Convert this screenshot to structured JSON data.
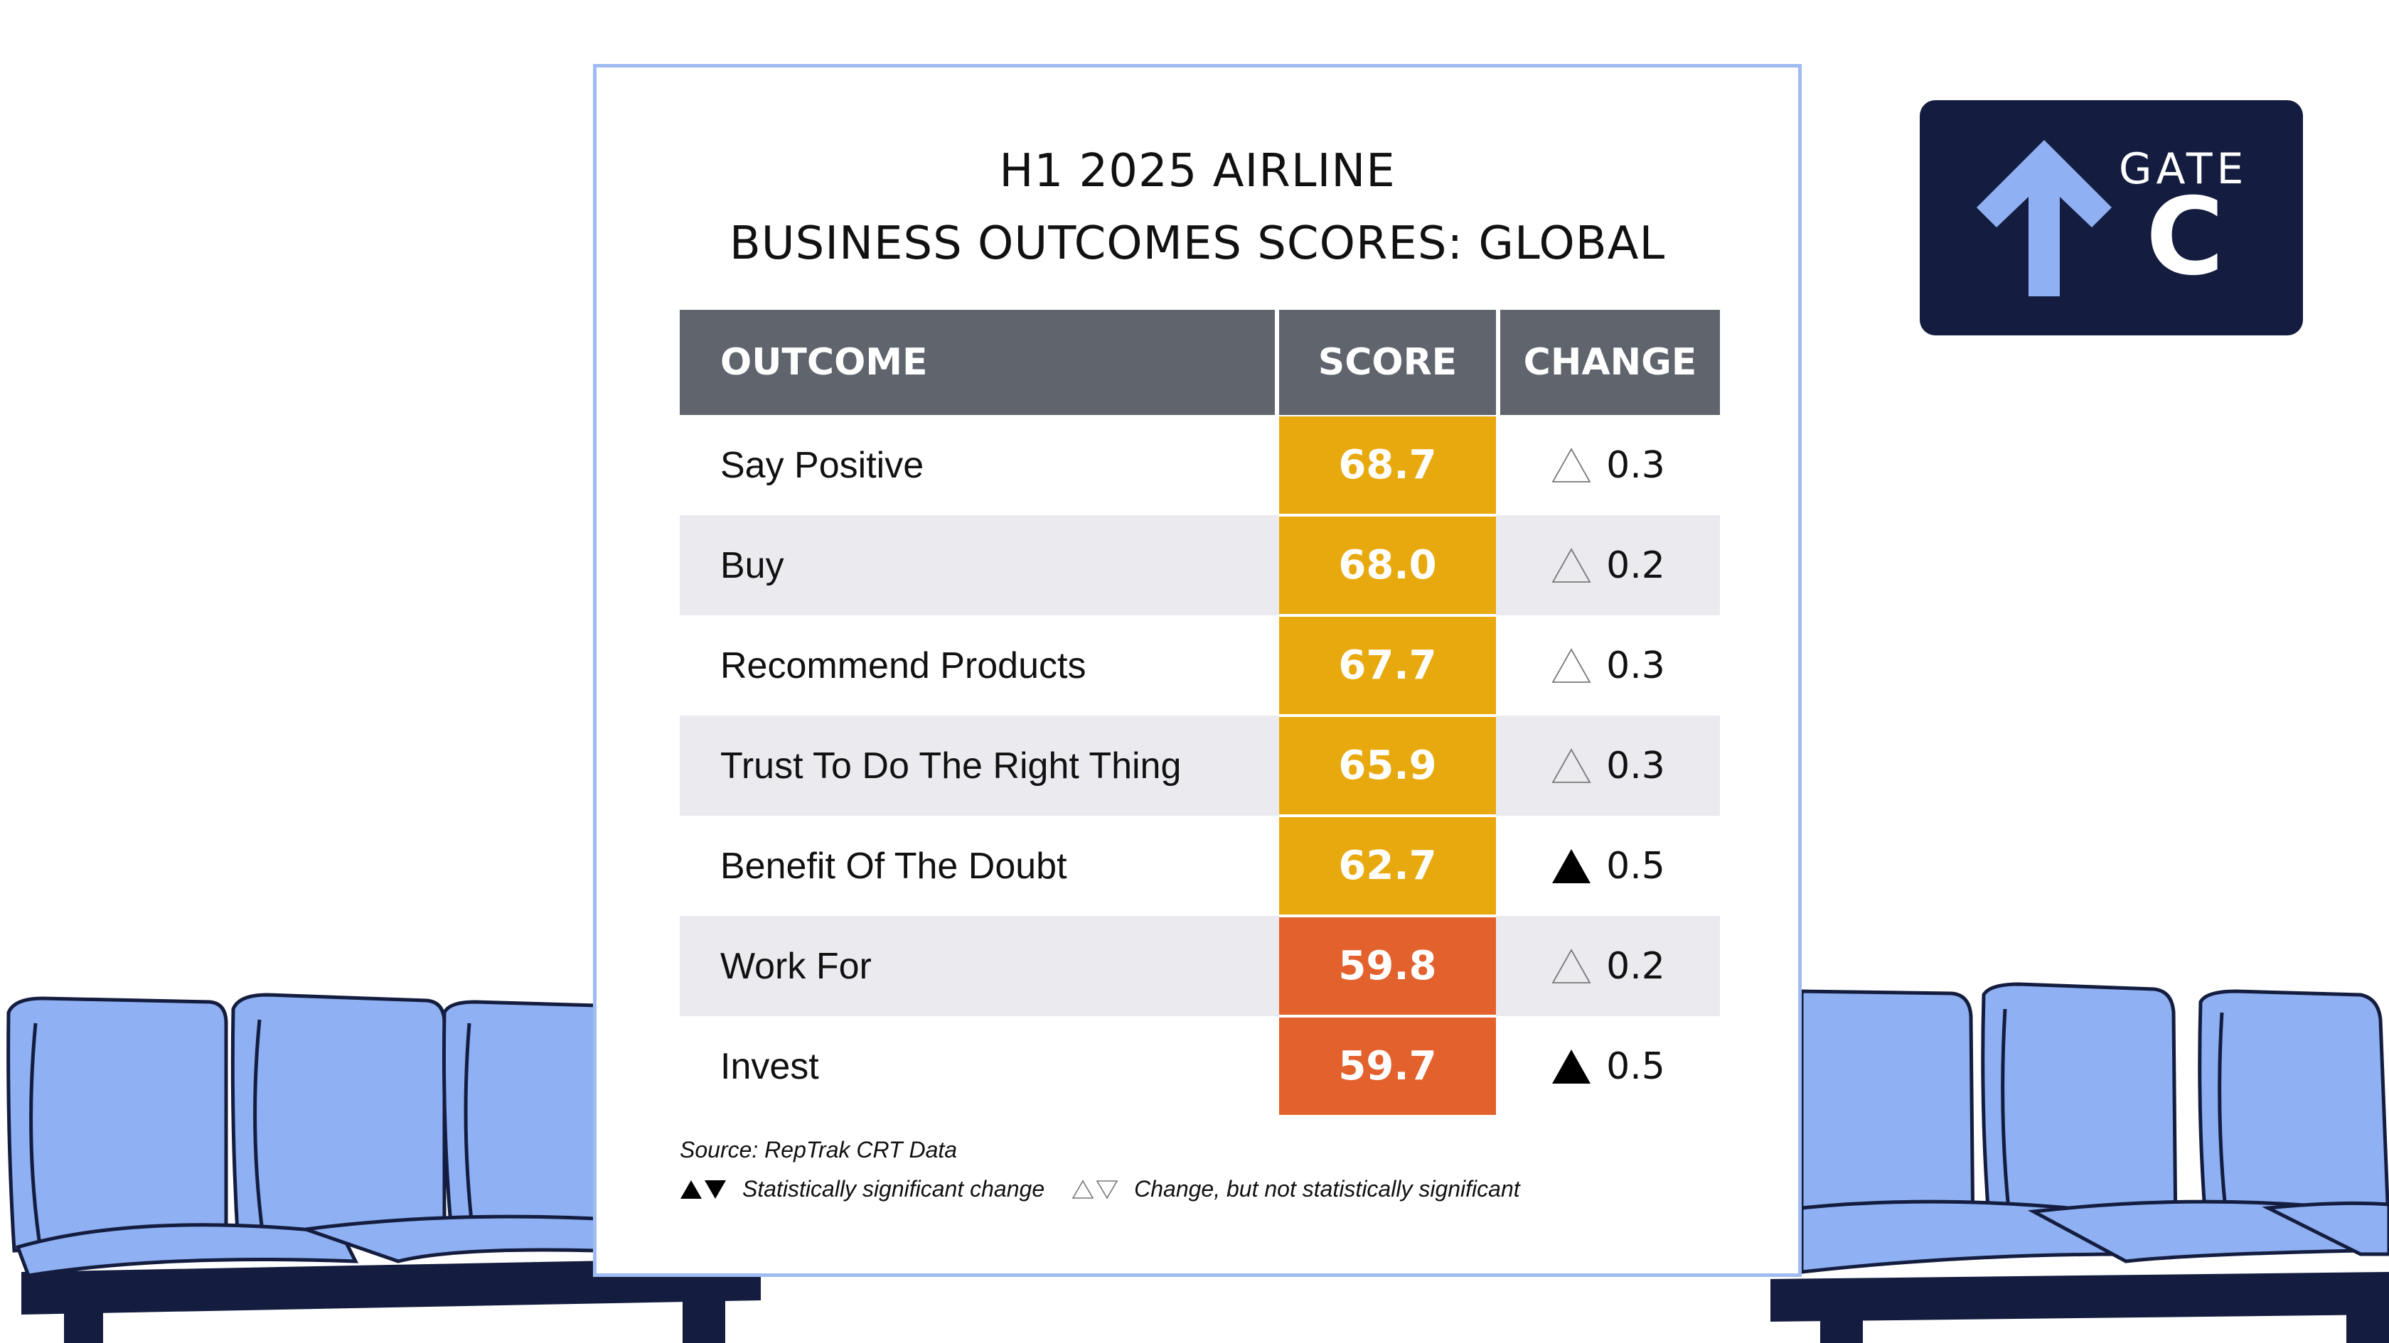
{
  "gate_sign": {
    "word": "GATE",
    "letter": "C",
    "icon": "arrow-up-icon",
    "background_color": "#141d3f",
    "arrow_color": "#8fb0f2"
  },
  "title": {
    "line1": "H1 2025 AIRLINE",
    "line2": "BUSINESS OUTCOMES SCORES: GLOBAL"
  },
  "table": {
    "headers": {
      "outcome": "OUTCOME",
      "score": "SCORE",
      "change": "CHANGE"
    },
    "rows": [
      {
        "outcome": "Say Positive",
        "score": "68.7",
        "change": "0.3",
        "significant": false,
        "score_color": "#e8a90e"
      },
      {
        "outcome": "Buy",
        "score": "68.0",
        "change": "0.2",
        "significant": false,
        "score_color": "#e8a90e"
      },
      {
        "outcome": "Recommend Products",
        "score": "67.7",
        "change": "0.3",
        "significant": false,
        "score_color": "#e8a90e"
      },
      {
        "outcome": "Trust To Do The Right Thing",
        "score": "65.9",
        "change": "0.3",
        "significant": false,
        "score_color": "#e8a90e"
      },
      {
        "outcome": "Benefit Of The Doubt",
        "score": "62.7",
        "change": "0.5",
        "significant": true,
        "score_color": "#e8a90e"
      },
      {
        "outcome": "Work For",
        "score": "59.8",
        "change": "0.2",
        "significant": false,
        "score_color": "#e2612d"
      },
      {
        "outcome": "Invest",
        "score": "59.7",
        "change": "0.5",
        "significant": true,
        "score_color": "#e2612d"
      }
    ]
  },
  "footnote": {
    "source": "Source: RepTrak CRT Data",
    "legend_significant": "Statistically significant change",
    "legend_not_significant": "Change, but not statistically significant"
  },
  "colors": {
    "card_border": "#9fbcf2",
    "header_bg": "#5f646d",
    "row_shade": "#ebebef",
    "seat": "#8fb0f2",
    "seat_frame": "#141d3f"
  }
}
